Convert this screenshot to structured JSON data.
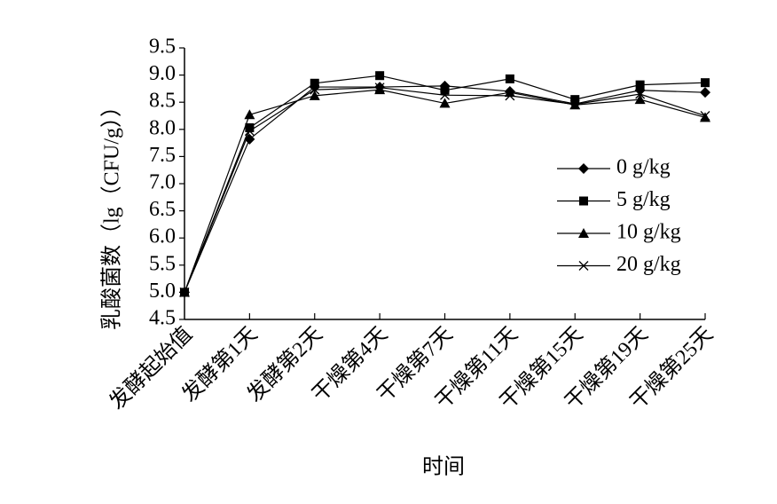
{
  "chart_data": {
    "type": "line",
    "x_label": "时间",
    "y_label": "乳酸菌数（lg（CFU/g））",
    "categories": [
      "发酵起始值",
      "发酵第1天",
      "发酵第2天",
      "干燥第4天",
      "干燥第7天",
      "干燥第11天",
      "干燥第15天",
      "干燥第19天",
      "干燥第25天"
    ],
    "series": [
      {
        "name": "0 g/kg",
        "color": "#000000",
        "marker": "diamond",
        "values": [
          5.0,
          7.82,
          8.78,
          8.78,
          8.8,
          8.7,
          8.47,
          8.72,
          8.68
        ]
      },
      {
        "name": "5 g/kg",
        "color": "#000000",
        "marker": "square",
        "values": [
          5.0,
          8.03,
          8.85,
          8.99,
          8.72,
          8.93,
          8.55,
          8.82,
          8.86
        ]
      },
      {
        "name": "10 g/kg",
        "color": "#000000",
        "marker": "triangle",
        "values": [
          5.0,
          8.27,
          8.62,
          8.73,
          8.48,
          8.68,
          8.45,
          8.55,
          8.22
        ]
      },
      {
        "name": "20 g/kg",
        "color": "#000000",
        "marker": "cross",
        "values": [
          5.0,
          7.97,
          8.73,
          8.77,
          8.63,
          8.62,
          8.46,
          8.65,
          8.25
        ]
      }
    ],
    "ylim": [
      4.5,
      9.5
    ],
    "yticks": [
      4.5,
      {
        "value": 5,
        "label": "5.0"
      },
      5.5,
      {
        "value": 6,
        "label": "6.0"
      },
      6.5,
      {
        "value": 7,
        "label": "7.0"
      },
      7.5,
      {
        "value": 8,
        "label": "8.0"
      },
      8.5,
      {
        "value": 9,
        "label": "9.0"
      },
      9.5
    ],
    "grid": false
  }
}
